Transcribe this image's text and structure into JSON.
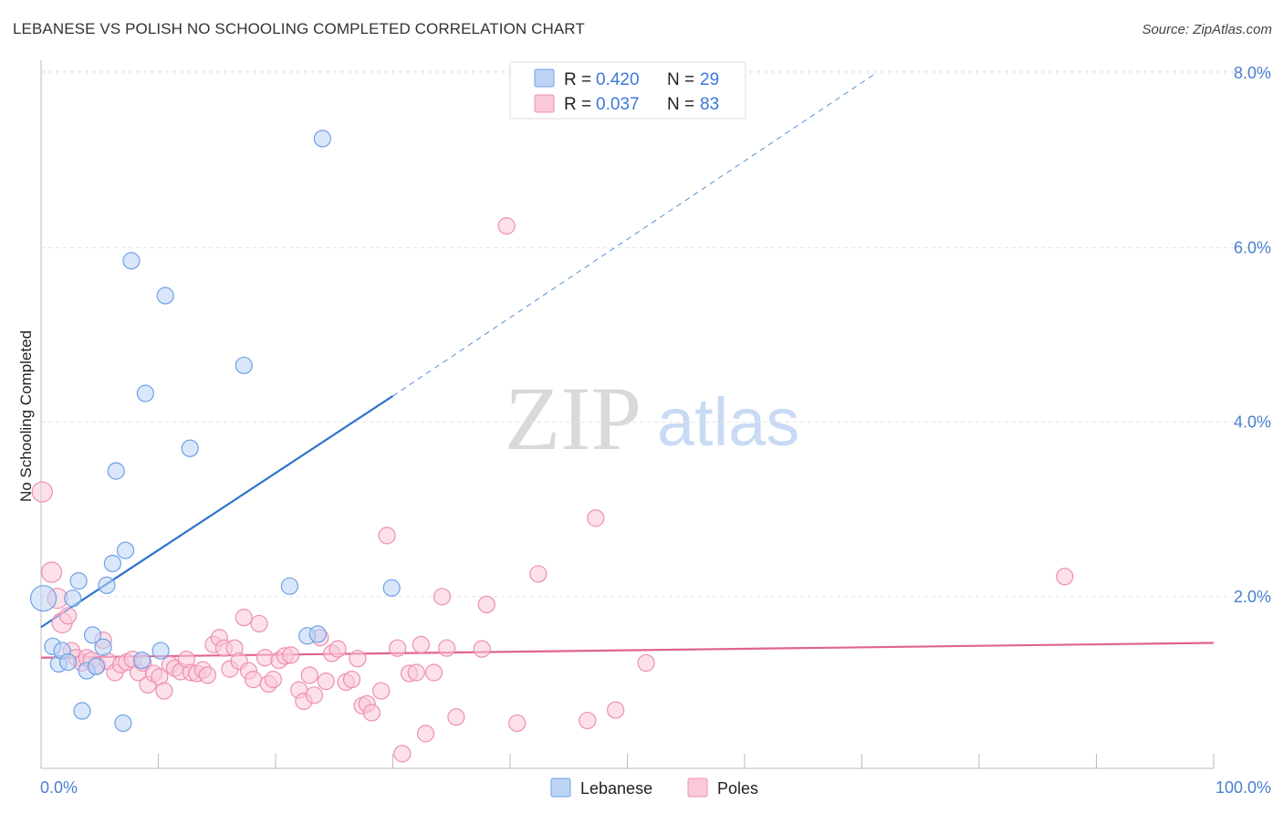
{
  "header": {
    "title": "LEBANESE VS POLISH NO SCHOOLING COMPLETED CORRELATION CHART",
    "source": "Source: ZipAtlas.com"
  },
  "colors": {
    "lebanese": "#6fa1e6",
    "lebanese_fill": "#bcd4f6",
    "lebanese_line": "#2f73cc",
    "poles": "#ee8fb0",
    "poles_fill": "#f9c9d9",
    "poles_line": "#e0648f",
    "axis_text": "#4a7fcf",
    "grid": "#e2e2e2"
  },
  "legend": {
    "rows": [
      {
        "r_label": "R =",
        "r_value": "0.420",
        "n_label": "N =",
        "n_value": "29"
      },
      {
        "r_label": "R =",
        "r_value": "0.037",
        "n_label": "N =",
        "n_value": "83"
      }
    ]
  },
  "bottom_legend": {
    "lebanese": "Lebanese",
    "poles": "Poles"
  },
  "watermark": {
    "zip": "ZIP",
    "atlas": "atlas"
  },
  "chart_data": {
    "type": "scatter",
    "title": "LEBANESE VS POLISH NO SCHOOLING COMPLETED CORRELATION CHART",
    "xlabel": "",
    "ylabel": "No Schooling Completed",
    "xlim": [
      0,
      100
    ],
    "ylim": [
      0,
      8.2
    ],
    "x_tick_labels": [
      "0.0%",
      "100.0%"
    ],
    "y_ticks": [
      2,
      4,
      6,
      8
    ],
    "y_tick_labels": [
      "2.0%",
      "4.0%",
      "6.0%",
      "8.0%"
    ],
    "grid": true,
    "series": [
      {
        "name": "Lebanese",
        "R": 0.42,
        "N": 29,
        "trend": {
          "x1": 0,
          "y1": 1.65,
          "x2": 30,
          "y2": 4.3,
          "dash_to_x": 71.2,
          "dash_to_y": 8.0
        },
        "points": [
          [
            0.2,
            1.98,
            14
          ],
          [
            1.0,
            1.43,
            9
          ],
          [
            1.5,
            1.23,
            9
          ],
          [
            1.8,
            1.38,
            9
          ],
          [
            2.3,
            1.25,
            9
          ],
          [
            2.7,
            1.98,
            9
          ],
          [
            3.2,
            2.18,
            9
          ],
          [
            3.5,
            0.69,
            9
          ],
          [
            3.9,
            1.15,
            9
          ],
          [
            4.4,
            1.56,
            9
          ],
          [
            4.7,
            1.2,
            9
          ],
          [
            5.3,
            1.42,
            9
          ],
          [
            5.6,
            2.13,
            9
          ],
          [
            6.1,
            2.38,
            9
          ],
          [
            6.4,
            3.44,
            9
          ],
          [
            7.0,
            0.55,
            9
          ],
          [
            7.2,
            2.53,
            9
          ],
          [
            7.7,
            5.85,
            9
          ],
          [
            8.6,
            1.27,
            9
          ],
          [
            8.9,
            4.33,
            9
          ],
          [
            10.2,
            1.38,
            9
          ],
          [
            10.6,
            5.45,
            9
          ],
          [
            12.7,
            3.7,
            9
          ],
          [
            17.3,
            4.65,
            9
          ],
          [
            21.2,
            2.12,
            9
          ],
          [
            22.7,
            1.55,
            9
          ],
          [
            23.6,
            1.57,
            9
          ],
          [
            24.0,
            7.25,
            9
          ],
          [
            29.9,
            2.1,
            9
          ]
        ]
      },
      {
        "name": "Poles",
        "R": 0.037,
        "N": 83,
        "trend": {
          "x1": 0,
          "y1": 1.3,
          "x2": 100,
          "y2": 1.47
        },
        "points": [
          [
            0.1,
            3.2,
            11
          ],
          [
            0.9,
            2.28,
            11
          ],
          [
            1.4,
            1.98,
            11
          ],
          [
            1.8,
            1.7,
            11
          ],
          [
            2.3,
            1.78,
            9
          ],
          [
            2.6,
            1.38,
            9
          ],
          [
            3.0,
            1.3,
            9
          ],
          [
            3.5,
            1.24,
            9
          ],
          [
            3.9,
            1.3,
            9
          ],
          [
            4.3,
            1.27,
            9
          ],
          [
            4.8,
            1.21,
            9
          ],
          [
            5.3,
            1.5,
            9
          ],
          [
            5.7,
            1.26,
            9
          ],
          [
            6.3,
            1.13,
            9
          ],
          [
            6.8,
            1.22,
            9
          ],
          [
            7.3,
            1.25,
            9
          ],
          [
            7.8,
            1.28,
            9
          ],
          [
            8.3,
            1.13,
            9
          ],
          [
            8.7,
            1.24,
            9
          ],
          [
            9.1,
            0.99,
            9
          ],
          [
            9.6,
            1.12,
            9
          ],
          [
            10.1,
            1.08,
            9
          ],
          [
            10.5,
            0.92,
            9
          ],
          [
            11.0,
            1.22,
            9
          ],
          [
            11.4,
            1.18,
            9
          ],
          [
            11.9,
            1.14,
            9
          ],
          [
            12.4,
            1.28,
            9
          ],
          [
            12.8,
            1.13,
            9
          ],
          [
            13.3,
            1.12,
            9
          ],
          [
            13.8,
            1.16,
            9
          ],
          [
            14.2,
            1.1,
            9
          ],
          [
            14.7,
            1.45,
            9
          ],
          [
            15.2,
            1.53,
            9
          ],
          [
            15.6,
            1.41,
            9
          ],
          [
            16.1,
            1.17,
            9
          ],
          [
            16.5,
            1.41,
            9
          ],
          [
            16.9,
            1.26,
            9
          ],
          [
            17.3,
            1.76,
            9
          ],
          [
            17.7,
            1.15,
            9
          ],
          [
            18.1,
            1.05,
            9
          ],
          [
            18.6,
            1.69,
            9
          ],
          [
            19.1,
            1.3,
            9
          ],
          [
            19.4,
            1.0,
            9
          ],
          [
            19.8,
            1.05,
            9
          ],
          [
            20.3,
            1.27,
            9
          ],
          [
            20.8,
            1.32,
            9
          ],
          [
            21.3,
            1.33,
            9
          ],
          [
            22.0,
            0.93,
            9
          ],
          [
            22.4,
            0.8,
            9
          ],
          [
            22.9,
            1.1,
            9
          ],
          [
            23.3,
            0.87,
            9
          ],
          [
            23.8,
            1.53,
            9
          ],
          [
            24.3,
            1.03,
            9
          ],
          [
            24.8,
            1.35,
            9
          ],
          [
            25.3,
            1.4,
            9
          ],
          [
            26.0,
            1.02,
            9
          ],
          [
            26.5,
            1.05,
            9
          ],
          [
            27.0,
            1.29,
            9
          ],
          [
            27.4,
            0.75,
            9
          ],
          [
            27.8,
            0.77,
            9
          ],
          [
            28.2,
            0.67,
            9
          ],
          [
            29.0,
            0.92,
            9
          ],
          [
            29.5,
            2.7,
            9
          ],
          [
            30.4,
            1.41,
            9
          ],
          [
            30.8,
            0.2,
            9
          ],
          [
            31.4,
            1.12,
            9
          ],
          [
            32.0,
            1.13,
            9
          ],
          [
            32.4,
            1.45,
            9
          ],
          [
            32.8,
            0.43,
            9
          ],
          [
            33.5,
            1.13,
            9
          ],
          [
            34.2,
            2.0,
            9
          ],
          [
            34.6,
            1.41,
            9
          ],
          [
            35.4,
            0.62,
            9
          ],
          [
            37.6,
            1.4,
            9
          ],
          [
            38.0,
            1.91,
            9
          ],
          [
            39.7,
            6.25,
            9
          ],
          [
            40.6,
            0.55,
            9
          ],
          [
            42.4,
            2.26,
            9
          ],
          [
            46.6,
            0.58,
            9
          ],
          [
            47.3,
            2.9,
            9
          ],
          [
            49.0,
            0.7,
            9
          ],
          [
            51.6,
            1.24,
            9
          ],
          [
            87.3,
            2.23,
            9
          ]
        ]
      }
    ]
  }
}
